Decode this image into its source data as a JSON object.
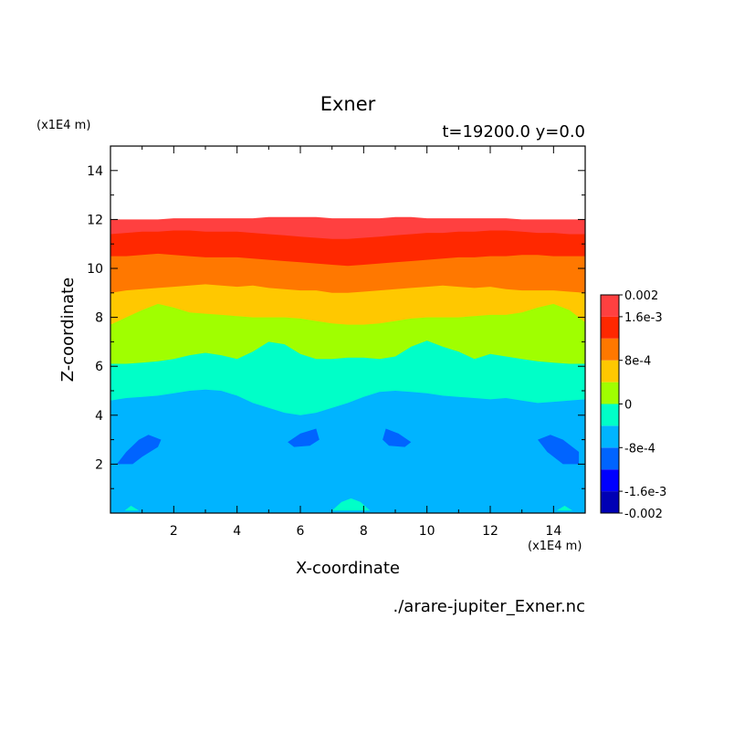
{
  "chart_data": {
    "type": "contour",
    "title": "Exner",
    "subtitle": "t=19200.0 y=0.0",
    "xlabel": "X-coordinate",
    "ylabel": "Z-coordinate",
    "x_unit": "(x1E4 m)",
    "y_unit": "(x1E4 m)",
    "source_file": "./arare-jupiter_Exner.nc",
    "xlim": [
      0,
      15
    ],
    "ylim": [
      0,
      15
    ],
    "x_ticks": [
      "2",
      "4",
      "6",
      "8",
      "10",
      "12",
      "14"
    ],
    "y_ticks": [
      "2",
      "4",
      "6",
      "8",
      "10",
      "12",
      "14"
    ],
    "colorbar": {
      "levels": [
        -0.002,
        -0.0016,
        -0.0012,
        -0.0008,
        -0.0004,
        0,
        0.0004,
        0.0008,
        0.0012,
        0.0016,
        0.002
      ],
      "colors": [
        "#0000b4",
        "#0000ff",
        "#0064ff",
        "#00b4ff",
        "#00ffc8",
        "#a0ff00",
        "#ffc800",
        "#ff7800",
        "#ff2800",
        "#ff4040"
      ],
      "tick_labels": [
        "0.002",
        "1.6e-3",
        "8e-4",
        "0",
        "-8e-4",
        "-1.6e-3",
        "-0.002"
      ]
    },
    "bands": [
      {
        "color": "#00b4ff",
        "top": [
          4.6,
          4.7,
          4.75,
          4.8,
          4.9,
          5.0,
          5.05,
          5.0,
          4.8,
          4.5,
          4.3,
          4.1,
          4.0,
          4.1,
          4.3,
          4.5,
          4.75,
          4.95,
          5.0,
          4.95,
          4.9,
          4.8,
          4.75,
          4.7,
          4.65,
          4.7,
          4.6,
          4.5,
          4.55,
          4.6,
          4.65
        ]
      },
      {
        "color": "#00ffc8",
        "top": [
          6.1,
          6.1,
          6.15,
          6.2,
          6.3,
          6.45,
          6.55,
          6.45,
          6.3,
          6.6,
          7.0,
          6.9,
          6.5,
          6.3,
          6.3,
          6.35,
          6.35,
          6.3,
          6.4,
          6.8,
          7.05,
          6.8,
          6.6,
          6.3,
          6.5,
          6.4,
          6.3,
          6.2,
          6.15,
          6.1,
          6.1
        ]
      },
      {
        "color": "#a0ff00",
        "top": [
          7.7,
          8.0,
          8.3,
          8.55,
          8.4,
          8.2,
          8.15,
          8.1,
          8.05,
          8.0,
          8.0,
          8.0,
          7.95,
          7.85,
          7.75,
          7.7,
          7.7,
          7.75,
          7.85,
          7.95,
          8.0,
          8.0,
          8.0,
          8.05,
          8.1,
          8.1,
          8.2,
          8.4,
          8.55,
          8.3,
          7.8
        ]
      },
      {
        "color": "#ffc800",
        "top": [
          9.0,
          9.1,
          9.15,
          9.2,
          9.25,
          9.3,
          9.35,
          9.3,
          9.25,
          9.3,
          9.2,
          9.15,
          9.1,
          9.1,
          9.0,
          9.0,
          9.05,
          9.1,
          9.15,
          9.2,
          9.25,
          9.3,
          9.25,
          9.2,
          9.25,
          9.15,
          9.1,
          9.1,
          9.1,
          9.05,
          9.0
        ]
      },
      {
        "color": "#ff7800",
        "top": [
          10.5,
          10.5,
          10.55,
          10.6,
          10.55,
          10.5,
          10.45,
          10.45,
          10.45,
          10.4,
          10.35,
          10.3,
          10.25,
          10.2,
          10.15,
          10.1,
          10.15,
          10.2,
          10.25,
          10.3,
          10.35,
          10.4,
          10.45,
          10.45,
          10.5,
          10.5,
          10.55,
          10.55,
          10.5,
          10.5,
          10.5
        ]
      },
      {
        "color": "#ff2800",
        "top": [
          11.4,
          11.45,
          11.5,
          11.5,
          11.55,
          11.55,
          11.5,
          11.5,
          11.5,
          11.45,
          11.4,
          11.35,
          11.3,
          11.25,
          11.2,
          11.2,
          11.25,
          11.3,
          11.35,
          11.4,
          11.45,
          11.45,
          11.5,
          11.5,
          11.55,
          11.55,
          11.5,
          11.45,
          11.45,
          11.4,
          11.4
        ]
      },
      {
        "color": "#ff4040",
        "top": [
          12.0,
          12.0,
          12.0,
          12.0,
          12.05,
          12.05,
          12.05,
          12.05,
          12.05,
          12.05,
          12.1,
          12.1,
          12.1,
          12.1,
          12.05,
          12.05,
          12.05,
          12.05,
          12.1,
          12.1,
          12.05,
          12.05,
          12.05,
          12.05,
          12.05,
          12.05,
          12.0,
          12.0,
          12.0,
          12.0,
          12.0
        ]
      }
    ],
    "blobs": [
      {
        "color": "#0064ff",
        "points": [
          [
            0.2,
            2.0
          ],
          [
            0.5,
            2.5
          ],
          [
            0.9,
            3.0
          ],
          [
            1.2,
            3.2
          ],
          [
            1.6,
            3.0
          ],
          [
            1.5,
            2.7
          ],
          [
            1.0,
            2.3
          ],
          [
            0.7,
            2.0
          ]
        ]
      },
      {
        "color": "#0064ff",
        "points": [
          [
            5.6,
            2.9
          ],
          [
            6.0,
            3.25
          ],
          [
            6.5,
            3.45
          ],
          [
            6.6,
            3.0
          ],
          [
            6.3,
            2.75
          ],
          [
            5.8,
            2.7
          ]
        ]
      },
      {
        "color": "#0064ff",
        "points": [
          [
            8.6,
            3.0
          ],
          [
            8.7,
            3.45
          ],
          [
            9.1,
            3.25
          ],
          [
            9.5,
            2.9
          ],
          [
            9.3,
            2.7
          ],
          [
            8.8,
            2.75
          ]
        ]
      },
      {
        "color": "#0064ff",
        "points": [
          [
            13.5,
            3.0
          ],
          [
            13.9,
            3.2
          ],
          [
            14.3,
            3.0
          ],
          [
            14.8,
            2.5
          ],
          [
            14.8,
            2.0
          ],
          [
            14.3,
            2.0
          ],
          [
            13.8,
            2.5
          ]
        ]
      },
      {
        "color": "#00ffc8",
        "points": [
          [
            7.0,
            0.1
          ],
          [
            7.3,
            0.45
          ],
          [
            7.6,
            0.6
          ],
          [
            7.9,
            0.45
          ],
          [
            8.2,
            0.1
          ]
        ]
      },
      {
        "color": "#00ffc8",
        "points": [
          [
            0.45,
            0.1
          ],
          [
            0.65,
            0.3
          ],
          [
            0.9,
            0.1
          ]
        ]
      },
      {
        "color": "#00ffc8",
        "points": [
          [
            14.1,
            0.1
          ],
          [
            14.35,
            0.3
          ],
          [
            14.6,
            0.1
          ]
        ]
      }
    ]
  }
}
